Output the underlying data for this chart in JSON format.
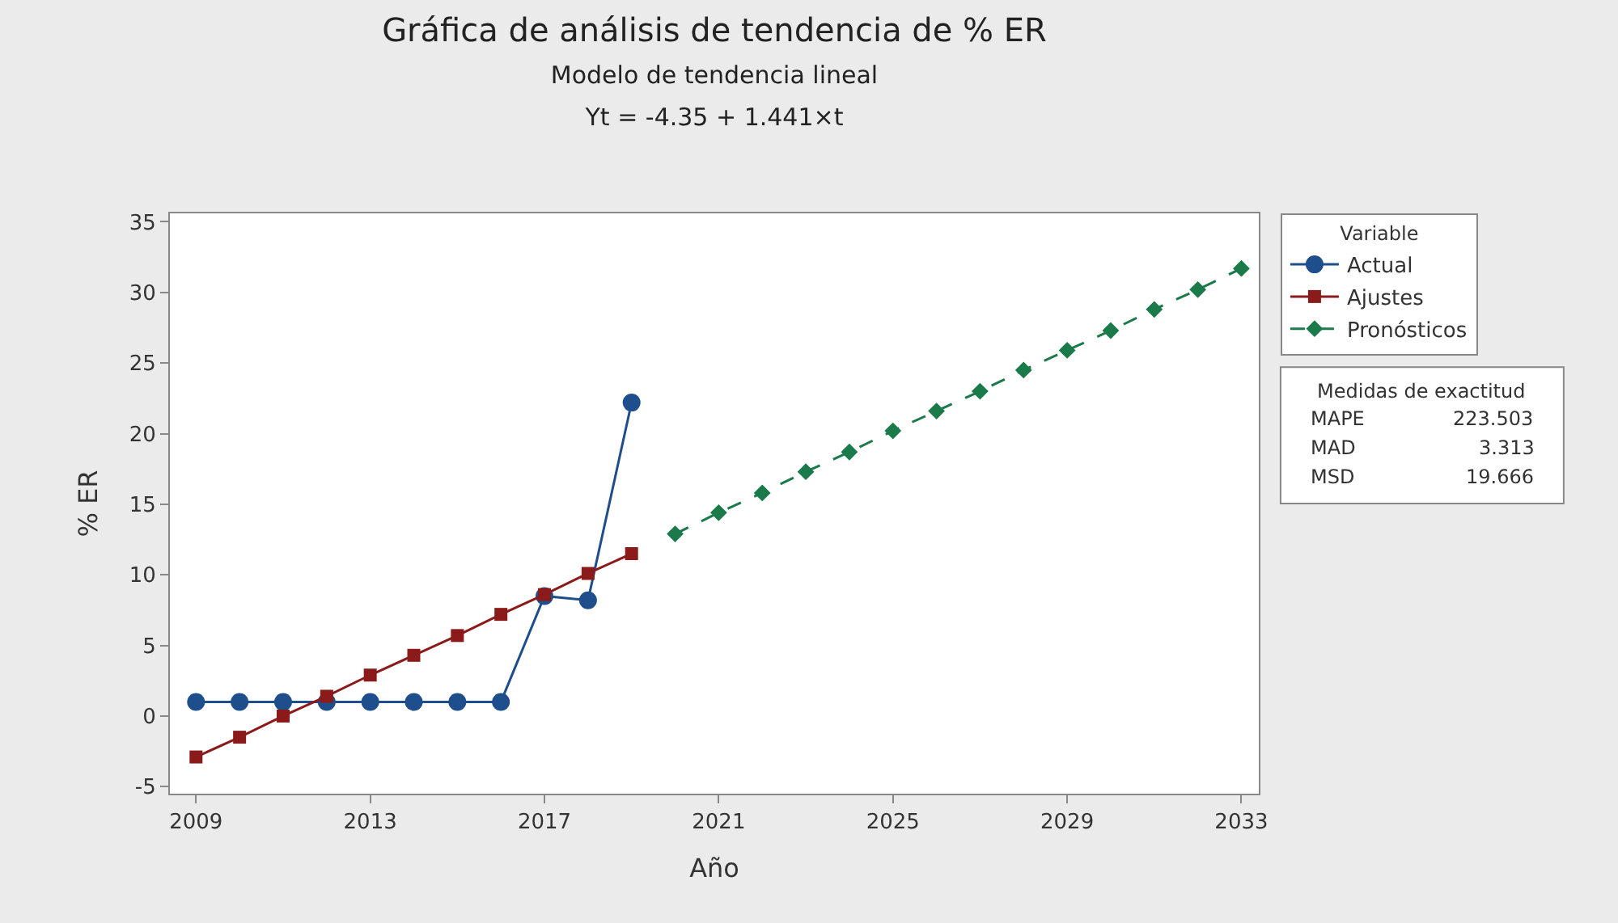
{
  "chart_data": {
    "type": "line",
    "title": "Gráfica de análisis de tendencia de % ER",
    "subtitle": "Modelo de tendencia lineal\nYt = -4.35 + 1.441×t",
    "xlabel": "Año",
    "ylabel": "% ER",
    "legend_title": "Variable",
    "legend": "top right",
    "xlim": [
      2008.4,
      2033.4
    ],
    "xticks": [
      2009,
      2013,
      2017,
      2021,
      2025,
      2029,
      2033
    ],
    "ylim": [
      -5.5,
      35.6
    ],
    "yticks": [
      -5,
      0,
      5,
      10,
      15,
      20,
      25,
      30,
      35
    ],
    "series": [
      {
        "name": "Actual",
        "color": "#1f4e8c",
        "marker": "circle",
        "line_style": "solid",
        "x": [
          2009,
          2010,
          2011,
          2012,
          2013,
          2014,
          2015,
          2016,
          2017,
          2018,
          2019
        ],
        "values": [
          1,
          1,
          1,
          1,
          1,
          1,
          1,
          1,
          8.5,
          8.2,
          22.2
        ]
      },
      {
        "name": "Ajustes",
        "color": "#8b1a1a",
        "marker": "square",
        "line_style": "solid",
        "x": [
          2009,
          2010,
          2011,
          2012,
          2013,
          2014,
          2015,
          2016,
          2017,
          2018,
          2019
        ],
        "values": [
          -2.9,
          -1.5,
          0.0,
          1.4,
          2.9,
          4.3,
          5.7,
          7.2,
          8.6,
          10.1,
          11.5
        ]
      },
      {
        "name": "Pronósticos",
        "color": "#1a7a4a",
        "marker": "diamond",
        "line_style": "dashed",
        "x": [
          2020,
          2021,
          2022,
          2023,
          2024,
          2025,
          2026,
          2027,
          2028,
          2029,
          2030,
          2031,
          2032,
          2033
        ],
        "values": [
          12.9,
          14.4,
          15.8,
          17.3,
          18.7,
          20.2,
          21.6,
          23.0,
          24.5,
          25.9,
          27.3,
          28.8,
          30.2,
          31.7
        ]
      }
    ],
    "annotations": [
      "Medidas de exactitud",
      "MAPE",
      "223.503",
      "MAD",
      "3.313",
      "MSD",
      "19.666"
    ]
  }
}
